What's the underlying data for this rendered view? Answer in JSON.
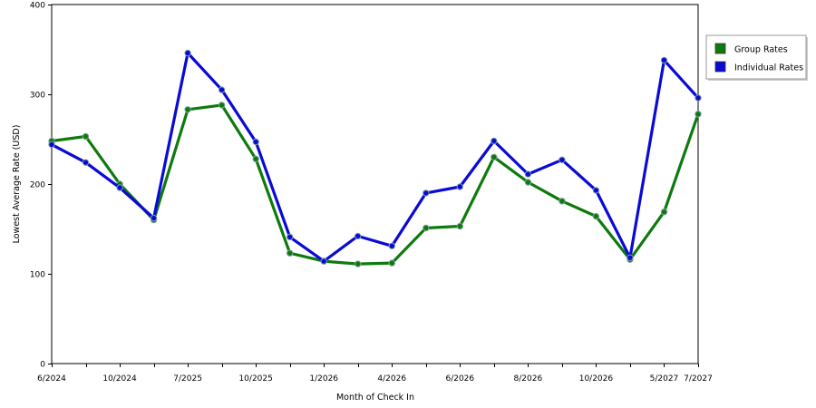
{
  "chart_data": {
    "type": "line",
    "title": "",
    "xlabel": "Month of Check In",
    "ylabel": "Lowest Average Rate (USD)",
    "ylim": [
      0,
      400
    ],
    "yticks": [
      0,
      100,
      200,
      300,
      400
    ],
    "grid": true,
    "legend_position": "right",
    "x_tick_labels": [
      "6/2024",
      "10/2024",
      "7/2025",
      "10/2025",
      "1/2026",
      "4/2026",
      "6/2026",
      "8/2026",
      "10/2026",
      "5/2027",
      "7/2027"
    ],
    "x_tick_positions": [
      0,
      2,
      4,
      6,
      8,
      10,
      12,
      14,
      16,
      18,
      19
    ],
    "series": [
      {
        "name": "Group Rates",
        "color": "#0e7a0e",
        "values": [
          248,
          253,
          200,
          160,
          283,
          288,
          228,
          123,
          114,
          111,
          112,
          151,
          153,
          230,
          202,
          181,
          164,
          116,
          169,
          278
        ]
      },
      {
        "name": "Individual Rates",
        "color": "#0a0ad6",
        "values": [
          244,
          224,
          196,
          162,
          346,
          305,
          247,
          141,
          114,
          142,
          131,
          190,
          197,
          248,
          211,
          227,
          193,
          118,
          338,
          296
        ]
      }
    ]
  }
}
